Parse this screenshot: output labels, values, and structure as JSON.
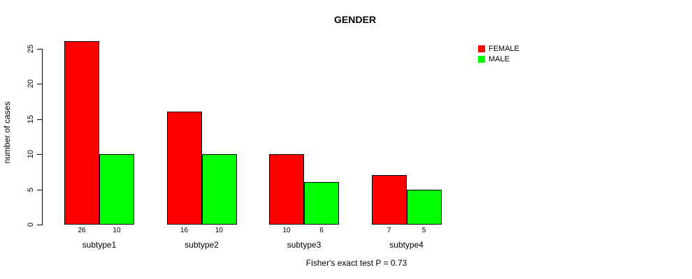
{
  "title": "GENDER",
  "ylabel": "number of cases",
  "footnote": "Fisher's exact test P = 0.73",
  "colors": {
    "female": "#FF0000",
    "male": "#00FF00",
    "axis": "#000000",
    "background": "#FFFFFF"
  },
  "legend": [
    {
      "label": "FEMALE",
      "color": "#FF0000"
    },
    {
      "label": "MALE",
      "color": "#00FF00"
    }
  ],
  "y_axis": {
    "ticks": [
      0,
      5,
      10,
      15,
      20,
      25
    ]
  },
  "chart_data": {
    "type": "bar",
    "categories": [
      "subtype1",
      "subtype2",
      "subtype3",
      "subtype4"
    ],
    "series": [
      {
        "name": "FEMALE",
        "color": "#FF0000",
        "values": [
          26,
          16,
          10,
          7
        ]
      },
      {
        "name": "MALE",
        "color": "#00FF00",
        "values": [
          10,
          10,
          6,
          5
        ]
      }
    ],
    "title": "GENDER",
    "xlabel": "",
    "ylabel": "number of cases",
    "ylim": [
      0,
      25
    ],
    "grid": false,
    "bar_value_labels": true,
    "legend_position": "top-right",
    "annotation": "Fisher's exact test P = 0.73"
  }
}
